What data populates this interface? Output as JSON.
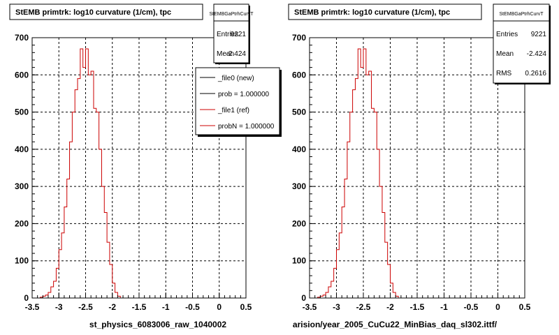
{
  "footer_text": "",
  "chart_data": [
    {
      "type": "bar",
      "title": "StEMB primtrk: log10 curvature (1/cm), tpc",
      "xlabel": "st_physics_6083006_raw_1040002",
      "ylabel": "",
      "xlim": [
        -3.5,
        0.5
      ],
      "ylim": [
        0,
        700
      ],
      "x_ticks": [
        "-3.5",
        "-3",
        "-2.5",
        "-2",
        "-1.5",
        "-1",
        "-0.5",
        "0",
        "0.5"
      ],
      "y_ticks": [
        "0",
        "100",
        "200",
        "300",
        "400",
        "500",
        "600",
        "700"
      ],
      "grid": true,
      "stats": {
        "name": "StEMBGaPtrhCurvT",
        "rows": [
          {
            "label": "Entries",
            "value": "9221"
          },
          {
            "label": "Mean",
            "value": "-2.424"
          }
        ]
      },
      "legend": {
        "position": "top-right",
        "entries": [
          {
            "label": "_file0 (new)",
            "color": "#000000"
          },
          {
            "label": "prob = 1.000000",
            "color": "#000000"
          },
          {
            "label": "_file1 (ref)",
            "color": "#cc0000"
          },
          {
            "label": "probN = 1.000000",
            "color": "#cc0000"
          }
        ]
      },
      "bin_width": 0.05,
      "series": [
        {
          "color": "#cc0000",
          "bin_starts": [
            -3.35,
            -3.3,
            -3.25,
            -3.2,
            -3.15,
            -3.1,
            -3.05,
            -3.0,
            -2.95,
            -2.9,
            -2.85,
            -2.8,
            -2.75,
            -2.7,
            -2.65,
            -2.6,
            -2.55,
            -2.5,
            -2.45,
            -2.4,
            -2.35,
            -2.3,
            -2.25,
            -2.2,
            -2.15,
            -2.1,
            -2.05,
            -2.0,
            -1.95,
            -1.9,
            -1.85
          ],
          "values": [
            2,
            5,
            8,
            15,
            30,
            45,
            80,
            130,
            175,
            245,
            320,
            420,
            500,
            560,
            590,
            670,
            620,
            670,
            600,
            610,
            510,
            500,
            400,
            300,
            230,
            150,
            90,
            40,
            15,
            5,
            0
          ]
        }
      ]
    },
    {
      "type": "bar",
      "title": "StEMB primtrk: log10 curvature (1/cm), tpc",
      "xlabel": "arision/year_2005_CuCu22_MinBias_daq_sl302.ittf/",
      "ylabel": "",
      "xlim": [
        -3.5,
        0.5
      ],
      "ylim": [
        0,
        700
      ],
      "x_ticks": [
        "-3.5",
        "-3",
        "-2.5",
        "-2",
        "-1.5",
        "-1",
        "-0.5",
        "0",
        "0.5"
      ],
      "y_ticks": [
        "0",
        "100",
        "200",
        "300",
        "400",
        "500",
        "600",
        "700"
      ],
      "grid": true,
      "stats": {
        "name": "StEMBGaPtrhCurvT",
        "rows": [
          {
            "label": "Entries",
            "value": "9221"
          },
          {
            "label": "Mean",
            "value": "-2.424"
          },
          {
            "label": "RMS",
            "value": "0.2616"
          }
        ]
      },
      "bin_width": 0.05,
      "series": [
        {
          "color": "#cc0000",
          "bin_starts": [
            -3.35,
            -3.3,
            -3.25,
            -3.2,
            -3.15,
            -3.1,
            -3.05,
            -3.0,
            -2.95,
            -2.9,
            -2.85,
            -2.8,
            -2.75,
            -2.7,
            -2.65,
            -2.6,
            -2.55,
            -2.5,
            -2.45,
            -2.4,
            -2.35,
            -2.3,
            -2.25,
            -2.2,
            -2.15,
            -2.1,
            -2.05,
            -2.0,
            -1.95,
            -1.9,
            -1.85
          ],
          "values": [
            2,
            5,
            8,
            15,
            30,
            45,
            80,
            130,
            175,
            245,
            320,
            420,
            500,
            560,
            590,
            670,
            620,
            670,
            600,
            610,
            510,
            500,
            400,
            300,
            230,
            150,
            90,
            40,
            15,
            5,
            0
          ]
        }
      ]
    }
  ]
}
